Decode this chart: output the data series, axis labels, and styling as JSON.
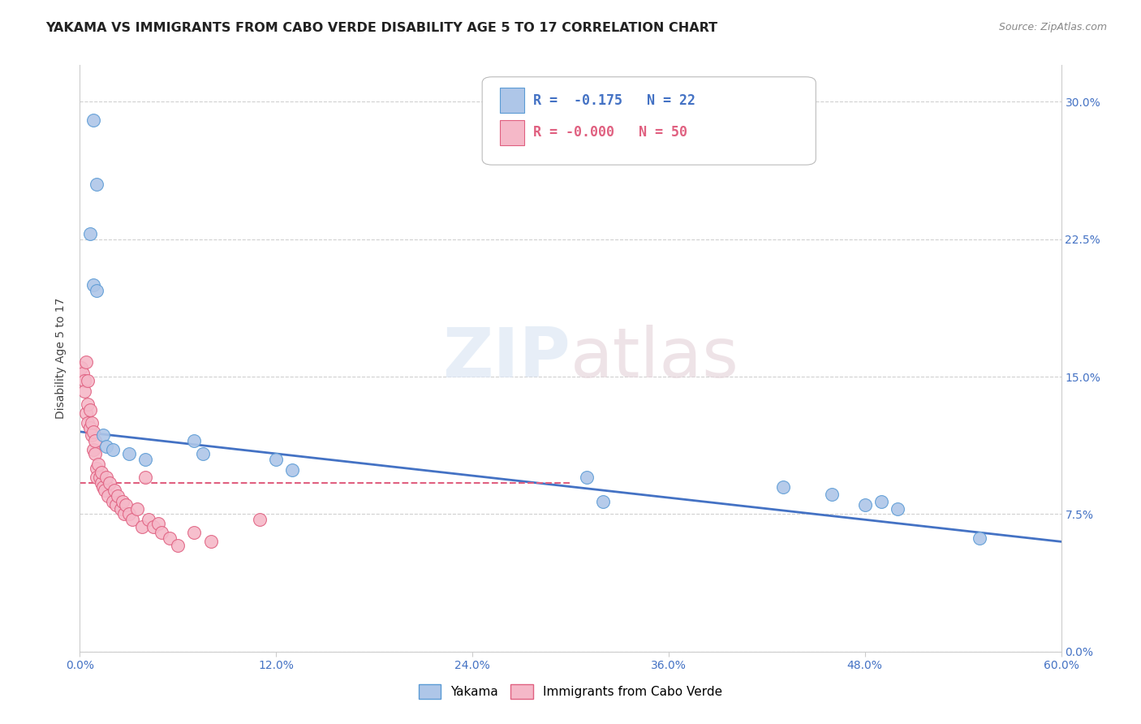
{
  "title": "YAKAMA VS IMMIGRANTS FROM CABO VERDE DISABILITY AGE 5 TO 17 CORRELATION CHART",
  "source": "Source: ZipAtlas.com",
  "xlabel_ticks": [
    "0.0%",
    "12.0%",
    "24.0%",
    "36.0%",
    "48.0%",
    "60.0%"
  ],
  "ylabel_ticks_right": [
    "30.0%",
    "22.5%",
    "15.0%",
    "7.5%",
    "0.0%"
  ],
  "xlabel_range": [
    0.0,
    0.6
  ],
  "ylabel_range": [
    0.0,
    0.32
  ],
  "watermark_zip": "ZIP",
  "watermark_atlas": "atlas",
  "yakama_R": "-0.175",
  "yakama_N": "22",
  "cabo_verde_R": "-0.000",
  "cabo_verde_N": "50",
  "yakama_color": "#aec6e8",
  "cabo_verde_color": "#f5b8c8",
  "yakama_edge_color": "#5b9bd5",
  "cabo_verde_edge_color": "#e06080",
  "yakama_line_color": "#4472c4",
  "cabo_verde_line_color": "#e06080",
  "yakama_x": [
    0.008,
    0.01,
    0.006,
    0.008,
    0.01,
    0.014,
    0.016,
    0.02,
    0.03,
    0.04,
    0.07,
    0.075,
    0.12,
    0.13,
    0.31,
    0.32,
    0.43,
    0.46,
    0.48,
    0.49,
    0.5,
    0.55
  ],
  "yakama_y": [
    0.29,
    0.255,
    0.228,
    0.2,
    0.197,
    0.118,
    0.112,
    0.11,
    0.108,
    0.105,
    0.115,
    0.108,
    0.105,
    0.099,
    0.095,
    0.082,
    0.09,
    0.086,
    0.08,
    0.082,
    0.078,
    0.062
  ],
  "cabo_verde_x": [
    0.001,
    0.002,
    0.003,
    0.003,
    0.004,
    0.004,
    0.005,
    0.005,
    0.005,
    0.006,
    0.006,
    0.007,
    0.007,
    0.008,
    0.008,
    0.009,
    0.009,
    0.01,
    0.01,
    0.011,
    0.012,
    0.013,
    0.013,
    0.014,
    0.015,
    0.016,
    0.017,
    0.018,
    0.02,
    0.021,
    0.022,
    0.023,
    0.025,
    0.026,
    0.027,
    0.028,
    0.03,
    0.032,
    0.035,
    0.038,
    0.04,
    0.042,
    0.045,
    0.048,
    0.05,
    0.055,
    0.06,
    0.07,
    0.08,
    0.11
  ],
  "cabo_verde_y": [
    0.155,
    0.152,
    0.148,
    0.142,
    0.158,
    0.13,
    0.148,
    0.135,
    0.125,
    0.132,
    0.122,
    0.125,
    0.118,
    0.12,
    0.11,
    0.108,
    0.115,
    0.1,
    0.095,
    0.102,
    0.095,
    0.092,
    0.098,
    0.09,
    0.088,
    0.095,
    0.085,
    0.092,
    0.082,
    0.088,
    0.08,
    0.085,
    0.078,
    0.082,
    0.075,
    0.08,
    0.075,
    0.072,
    0.078,
    0.068,
    0.095,
    0.072,
    0.068,
    0.07,
    0.065,
    0.062,
    0.058,
    0.065,
    0.06,
    0.072
  ],
  "yakama_trend_x": [
    0.0,
    0.6
  ],
  "yakama_trend_y_start": 0.12,
  "yakama_trend_y_end": 0.06,
  "cabo_verde_trend_x": [
    0.0,
    0.3
  ],
  "cabo_verde_trend_y_start": 0.092,
  "cabo_verde_trend_y_end": 0.092,
  "title_fontsize": 11.5,
  "axis_label_fontsize": 10,
  "tick_fontsize": 10,
  "source_fontsize": 9,
  "legend_fontsize": 12
}
